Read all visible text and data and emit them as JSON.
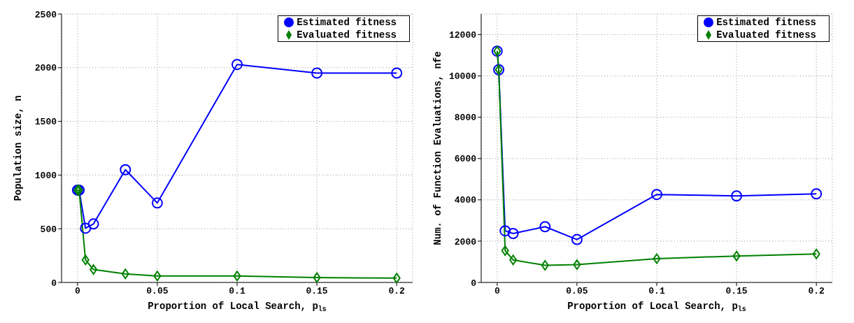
{
  "chart_data": [
    {
      "type": "line",
      "xlabel": "Proportion of Local Search, p$_{ls}$",
      "ylabel": "Population size, n",
      "x": [
        0,
        0.001,
        0.005,
        0.01,
        0.03,
        0.05,
        0.1,
        0.15,
        0.2
      ],
      "xlim": [
        -0.01,
        0.21
      ],
      "xticks": [
        0,
        0.05,
        0.1,
        0.15,
        0.2
      ],
      "ylim": [
        0,
        2500
      ],
      "yticks": [
        0,
        500,
        1000,
        1500,
        2000,
        2500
      ],
      "grid": true,
      "legend": "top right",
      "line_style": "solid",
      "series": [
        {
          "name": "Estimated fitness",
          "color": "#0000ff",
          "marker": "circle",
          "values": [
            860,
            860,
            505,
            545,
            1050,
            740,
            2030,
            1950,
            1950
          ]
        },
        {
          "name": "Evaluated fitness",
          "color": "#008000",
          "marker": "diamond",
          "values": [
            860,
            860,
            210,
            120,
            80,
            60,
            60,
            45,
            40
          ]
        }
      ]
    },
    {
      "type": "line",
      "xlabel": "Proportion of Local Search, p$_{ls}$",
      "ylabel": "Num. of Function Evaluations, nfe",
      "x": [
        0,
        0.001,
        0.005,
        0.01,
        0.03,
        0.05,
        0.1,
        0.15,
        0.2
      ],
      "xlim": [
        -0.01,
        0.21
      ],
      "xticks": [
        0,
        0.05,
        0.1,
        0.15,
        0.2
      ],
      "ylim": [
        0,
        13000
      ],
      "yticks": [
        0,
        2000,
        4000,
        6000,
        8000,
        10000,
        12000
      ],
      "grid": true,
      "legend": "top right",
      "line_style": "solid",
      "series": [
        {
          "name": "Estimated fitness",
          "color": "#0000ff",
          "marker": "circle",
          "values": [
            11200,
            10300,
            2500,
            2370,
            2700,
            2080,
            4260,
            4190,
            4290
          ]
        },
        {
          "name": "Evaluated fitness",
          "color": "#008000",
          "marker": "diamond",
          "values": [
            11200,
            10300,
            1540,
            1090,
            830,
            860,
            1150,
            1280,
            1380
          ]
        }
      ]
    }
  ]
}
